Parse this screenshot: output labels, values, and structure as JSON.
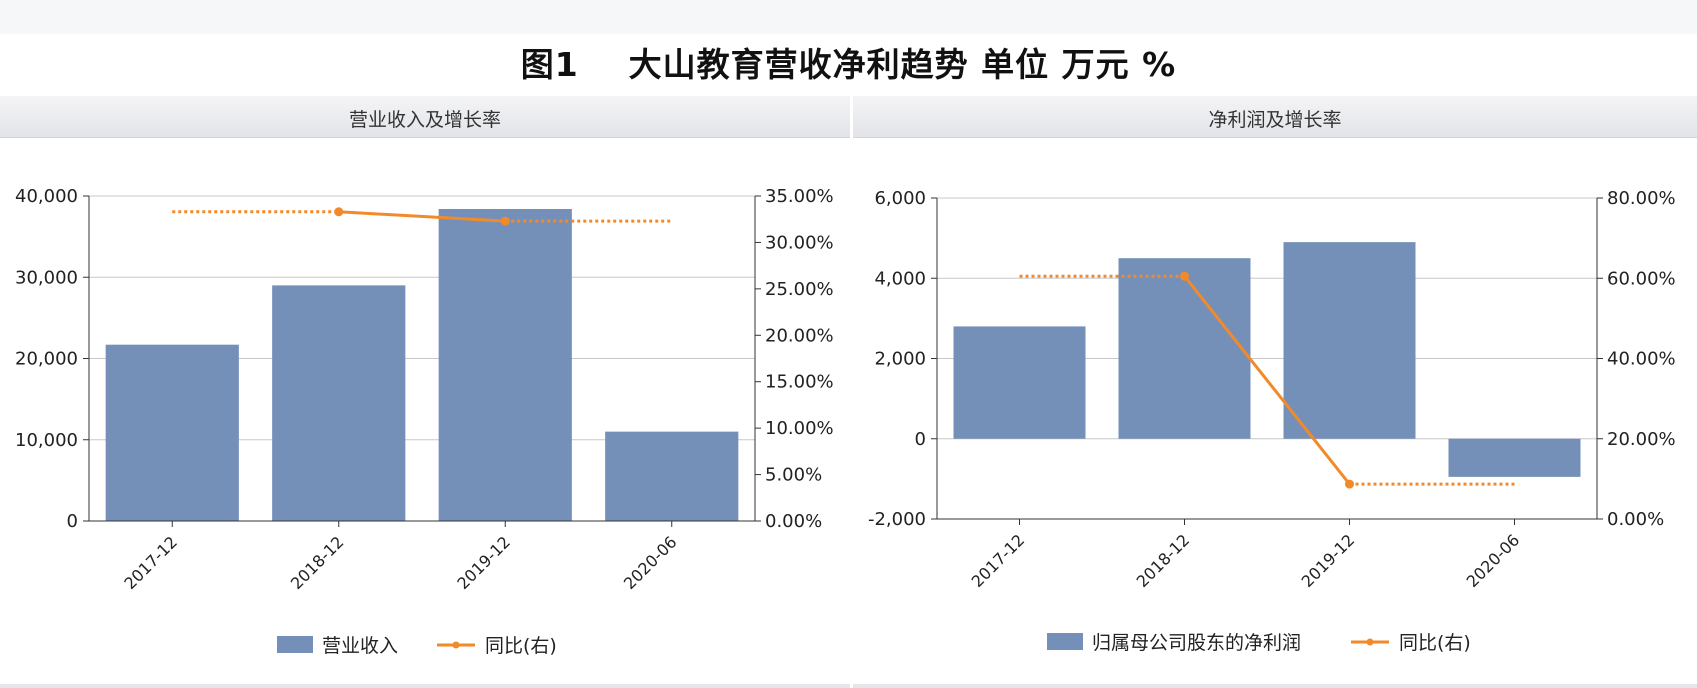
{
  "title": "图1    大山教育营收净利趋势 单位 万元 %",
  "colors": {
    "bar": "#7590b8",
    "line": "#f28a2b",
    "grid": "#c8c8c8",
    "axis": "#333333"
  },
  "chart_data": [
    {
      "type": "bar",
      "title": "营业收入及增长率",
      "categories": [
        "2017-12",
        "2018-12",
        "2019-12",
        "2020-06"
      ],
      "series": [
        {
          "name": "营业收入",
          "type": "bar",
          "axis": "left",
          "values": [
            21700,
            29000,
            38400,
            11000
          ]
        },
        {
          "name": "同比(右)",
          "type": "line",
          "axis": "right",
          "values": [
            null,
            33.3,
            32.3,
            null
          ],
          "reference_dotted": [
            {
              "from": "2017-12",
              "to": "2018-12",
              "value": 33.3
            },
            {
              "from": "2019-12",
              "to": "2020-06",
              "value": 32.3
            }
          ]
        }
      ],
      "y_left": {
        "min": 0,
        "max": 40000,
        "ticks": [
          0,
          10000,
          20000,
          30000,
          40000
        ],
        "tick_labels": [
          "0",
          "10,000",
          "20,000",
          "30,000",
          "40,000"
        ]
      },
      "y_right": {
        "min": 0,
        "max": 35,
        "ticks": [
          0,
          5,
          10,
          15,
          20,
          25,
          30,
          35
        ],
        "tick_labels": [
          "0.00%",
          "5.00%",
          "10.00%",
          "15.00%",
          "20.00%",
          "25.00%",
          "30.00%",
          "35.00%"
        ]
      },
      "legend": {
        "position": "bottom",
        "items": [
          "营业收入",
          "同比(右)"
        ]
      },
      "grid": true
    },
    {
      "type": "bar",
      "title": "净利润及增长率",
      "categories": [
        "2017-12",
        "2018-12",
        "2019-12",
        "2020-06"
      ],
      "series": [
        {
          "name": "归属母公司股东的净利润",
          "type": "bar",
          "axis": "left",
          "values": [
            2800,
            4500,
            4900,
            -950
          ]
        },
        {
          "name": "同比(右)",
          "type": "line",
          "axis": "right",
          "values": [
            null,
            60.5,
            8.7,
            null
          ],
          "reference_dotted": [
            {
              "from": "2017-12",
              "to": "2018-12",
              "value": 60.5
            },
            {
              "from": "2019-12",
              "to": "2020-06",
              "value": 8.7
            }
          ]
        }
      ],
      "y_left": {
        "min": -2000,
        "max": 6000,
        "ticks": [
          -2000,
          0,
          2000,
          4000,
          6000
        ],
        "tick_labels": [
          "-2,000",
          "0",
          "2,000",
          "4,000",
          "6,000"
        ]
      },
      "y_right": {
        "min": 0,
        "max": 80,
        "ticks": [
          0,
          20,
          40,
          60,
          80
        ],
        "tick_labels": [
          "0.00%",
          "20.00%",
          "40.00%",
          "60.00%",
          "80.00%"
        ]
      },
      "legend": {
        "position": "bottom",
        "items": [
          "归属母公司股东的净利润",
          "同比(右)"
        ]
      },
      "grid": true
    }
  ]
}
